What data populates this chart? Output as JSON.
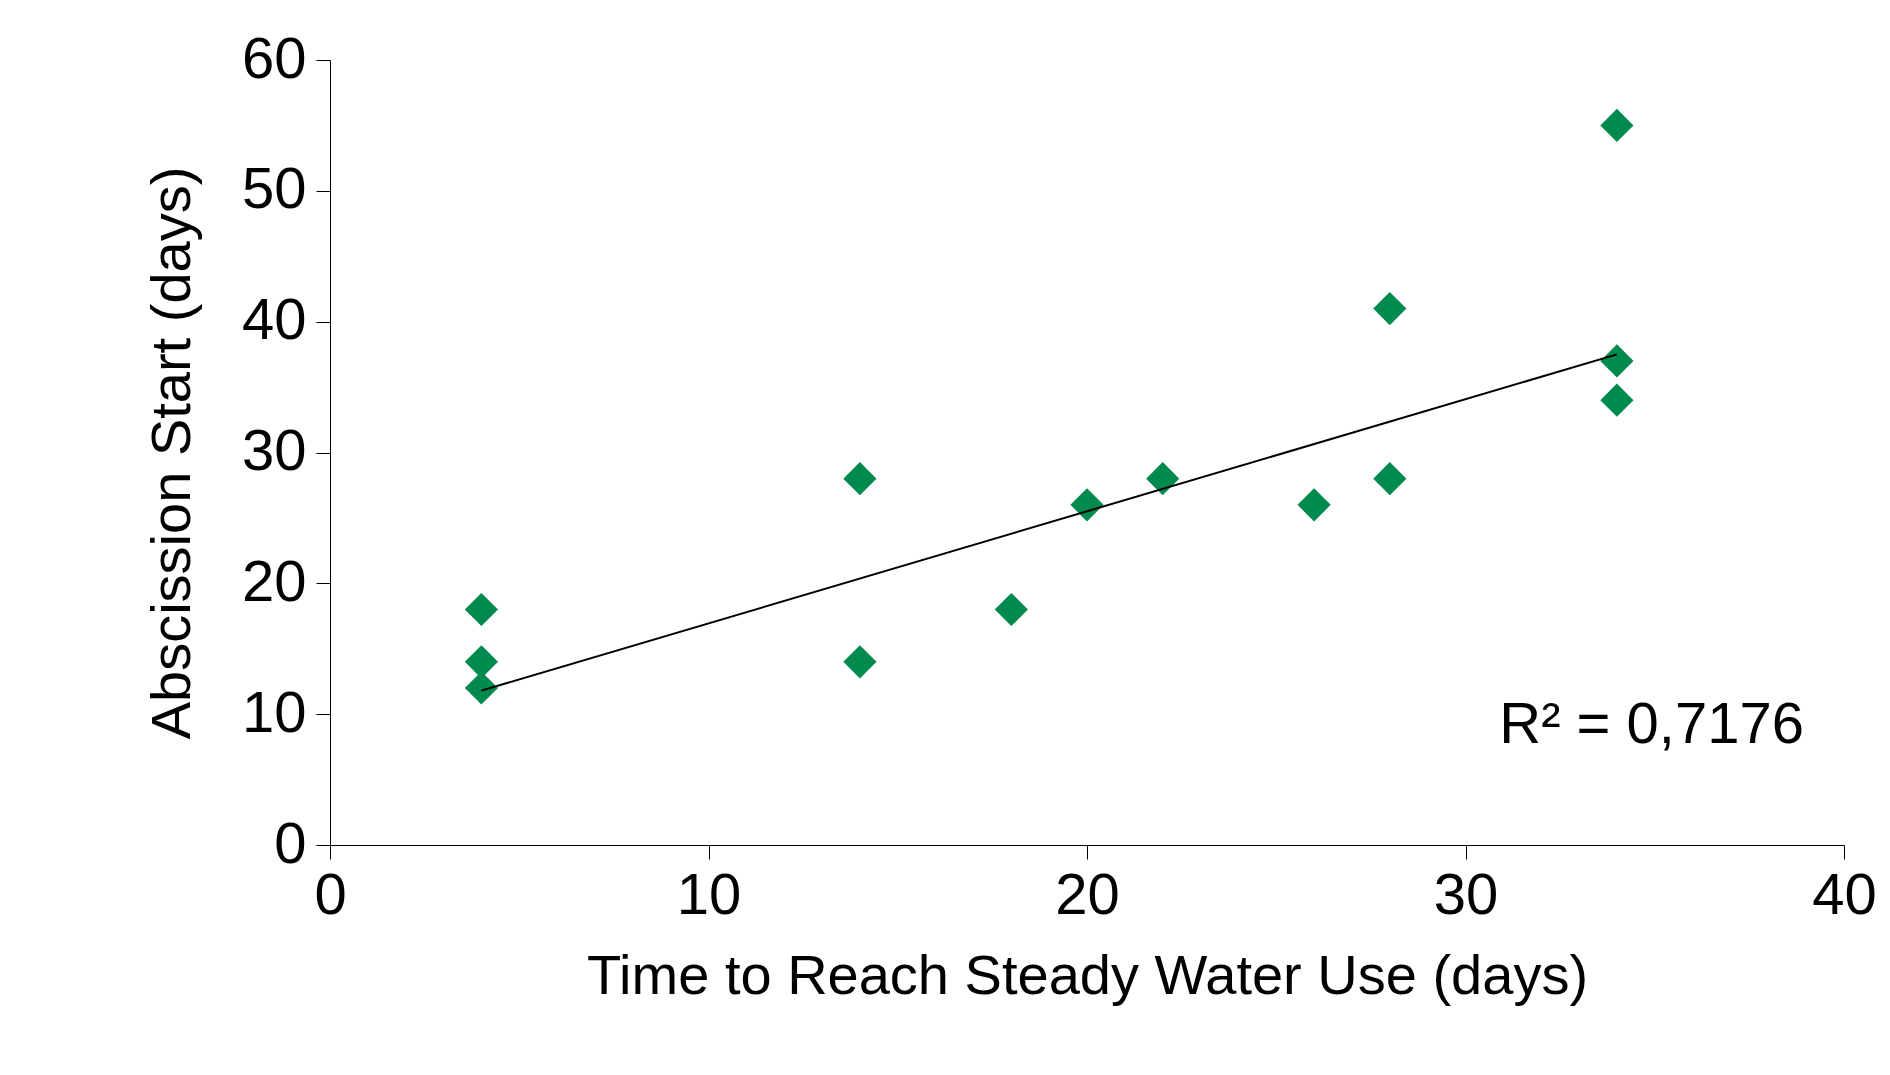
{
  "chart_data": {
    "type": "scatter",
    "xlabel": "Time to Reach Steady Water Use (days)",
    "ylabel": "Abscission Start (days)",
    "xlim": [
      0,
      40
    ],
    "xticks": [
      0,
      10,
      20,
      30,
      40
    ],
    "ylim": [
      0,
      60
    ],
    "yticks": [
      0,
      10,
      20,
      30,
      40,
      50,
      60
    ],
    "series": [
      {
        "marker": "diamond",
        "color": "#008a4e",
        "x": [
          4,
          4,
          4,
          14,
          14,
          18,
          20,
          22,
          26,
          28,
          28,
          34,
          34,
          34
        ],
        "values": [
          18,
          14,
          12,
          28,
          14,
          18,
          26,
          28,
          26,
          41,
          28,
          55,
          37,
          34
        ]
      },
      {
        "type": "line",
        "color": "#000000",
        "line_style": "solid",
        "x": [
          4,
          34
        ],
        "values": [
          11.8,
          37.5
        ]
      }
    ],
    "annotations": [
      "R² = 0,7176"
    ]
  }
}
